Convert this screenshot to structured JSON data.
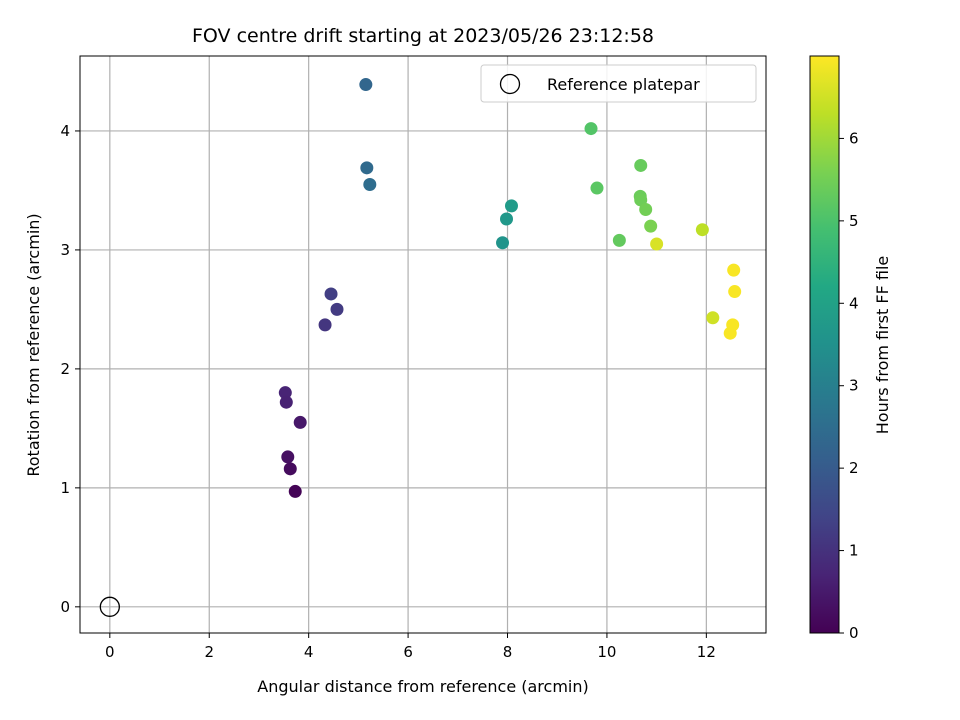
{
  "chart_data": {
    "type": "scatter",
    "title": "FOV centre drift starting at 2023/05/26 23:12:58",
    "xlabel": "Angular distance from reference (arcmin)",
    "ylabel": "Rotation from reference (arcmin)",
    "xlim": [
      -0.6,
      13.2
    ],
    "ylim": [
      -0.22,
      4.63
    ],
    "xticks": [
      "0",
      "2",
      "4",
      "6",
      "8",
      "10",
      "12"
    ],
    "yticks": [
      "0",
      "1",
      "2",
      "3",
      "4"
    ],
    "grid": true,
    "legend": {
      "position": "top-right",
      "label": "Reference platepar"
    },
    "reference_point": {
      "x": 0,
      "y": 0
    },
    "colorbar": {
      "label": "Hours from first FF file",
      "min": 0,
      "max": 7,
      "ticks": [
        "0",
        "1",
        "2",
        "3",
        "4",
        "5",
        "6"
      ],
      "colormap": "viridis"
    },
    "points": [
      {
        "x": 3.53,
        "y": 1.8,
        "c": 0.7
      },
      {
        "x": 3.55,
        "y": 1.72,
        "c": 0.65
      },
      {
        "x": 3.83,
        "y": 1.55,
        "c": 0.45
      },
      {
        "x": 3.58,
        "y": 1.26,
        "c": 0.3
      },
      {
        "x": 3.63,
        "y": 1.16,
        "c": 0.2
      },
      {
        "x": 3.73,
        "y": 0.97,
        "c": 0.05
      },
      {
        "x": 4.33,
        "y": 2.37,
        "c": 1.1
      },
      {
        "x": 4.45,
        "y": 2.63,
        "c": 1.3
      },
      {
        "x": 4.57,
        "y": 2.5,
        "c": 1.2
      },
      {
        "x": 5.15,
        "y": 4.39,
        "c": 2.3
      },
      {
        "x": 5.17,
        "y": 3.69,
        "c": 2.4
      },
      {
        "x": 5.23,
        "y": 3.55,
        "c": 2.5
      },
      {
        "x": 7.9,
        "y": 3.06,
        "c": 3.6
      },
      {
        "x": 7.98,
        "y": 3.26,
        "c": 3.7
      },
      {
        "x": 8.08,
        "y": 3.37,
        "c": 3.8
      },
      {
        "x": 9.68,
        "y": 4.02,
        "c": 5.1
      },
      {
        "x": 9.8,
        "y": 3.52,
        "c": 5.2
      },
      {
        "x": 10.25,
        "y": 3.08,
        "c": 5.3
      },
      {
        "x": 10.68,
        "y": 3.71,
        "c": 5.35
      },
      {
        "x": 10.67,
        "y": 3.45,
        "c": 5.4
      },
      {
        "x": 10.68,
        "y": 3.42,
        "c": 5.45
      },
      {
        "x": 10.78,
        "y": 3.34,
        "c": 5.5
      },
      {
        "x": 10.88,
        "y": 3.2,
        "c": 5.6
      },
      {
        "x": 11.0,
        "y": 3.05,
        "c": 6.6
      },
      {
        "x": 11.92,
        "y": 3.17,
        "c": 6.3
      },
      {
        "x": 12.13,
        "y": 2.43,
        "c": 6.5
      },
      {
        "x": 12.48,
        "y": 2.3,
        "c": 6.95
      },
      {
        "x": 12.53,
        "y": 2.37,
        "c": 6.95
      },
      {
        "x": 12.55,
        "y": 2.83,
        "c": 6.95
      },
      {
        "x": 12.57,
        "y": 2.65,
        "c": 6.95
      }
    ]
  }
}
